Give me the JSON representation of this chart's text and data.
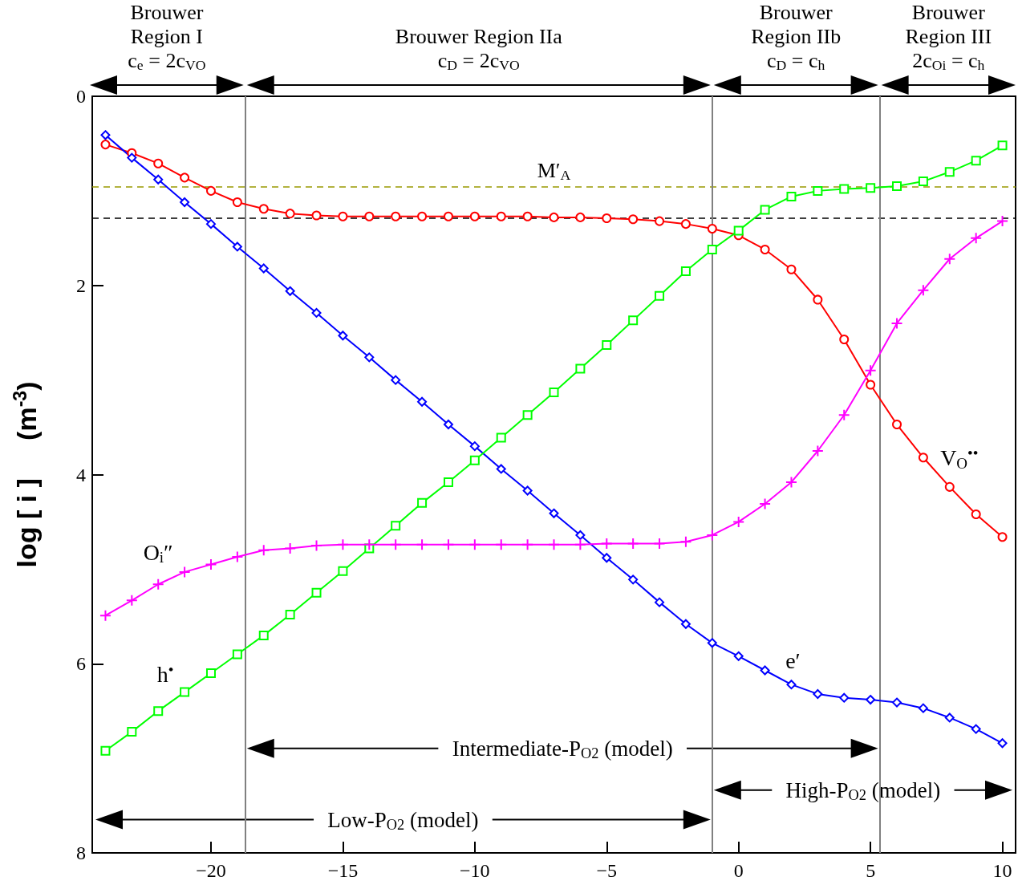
{
  "chart_data": {
    "type": "line",
    "ylabel": "log [ i ]     (m$^{-3}$)",
    "x": [
      -24,
      -23,
      -22,
      -21,
      -20,
      -19,
      -18,
      -17,
      -16,
      -15,
      -14,
      -13,
      -12,
      -11,
      -10,
      -9,
      -8,
      -7,
      -6,
      -5,
      -4,
      -3,
      -2,
      -1,
      0,
      1,
      2,
      3,
      4,
      5,
      6,
      7,
      8,
      9,
      10
    ],
    "series": [
      {
        "name": "V$_{O}$$^{••}$",
        "color": "#ff0000",
        "marker": "circle",
        "values": [
          0.51,
          0.6,
          0.71,
          0.86,
          1.0,
          1.12,
          1.19,
          1.24,
          1.26,
          1.27,
          1.27,
          1.27,
          1.27,
          1.27,
          1.27,
          1.27,
          1.27,
          1.28,
          1.28,
          1.29,
          1.3,
          1.32,
          1.35,
          1.4,
          1.47,
          1.62,
          1.83,
          2.15,
          2.57,
          3.05,
          3.47,
          3.82,
          4.13,
          4.42,
          4.66
        ]
      },
      {
        "name": "e′",
        "color": "#0000ff",
        "marker": "diamond",
        "values": [
          0.41,
          0.65,
          0.88,
          1.12,
          1.35,
          1.59,
          1.82,
          2.06,
          2.29,
          2.53,
          2.76,
          3.0,
          3.23,
          3.47,
          3.7,
          3.94,
          4.17,
          4.41,
          4.64,
          4.88,
          5.11,
          5.35,
          5.58,
          5.78,
          5.92,
          6.07,
          6.22,
          6.32,
          6.36,
          6.38,
          6.41,
          6.47,
          6.57,
          6.69,
          6.84
        ]
      },
      {
        "name": "h$^{•}$",
        "color": "#00ff00",
        "marker": "square",
        "values": [
          6.92,
          6.72,
          6.5,
          6.3,
          6.1,
          5.9,
          5.7,
          5.48,
          5.25,
          5.02,
          4.78,
          4.54,
          4.3,
          4.08,
          3.85,
          3.61,
          3.37,
          3.13,
          2.88,
          2.63,
          2.37,
          2.11,
          1.85,
          1.62,
          1.42,
          1.2,
          1.06,
          1.0,
          0.98,
          0.97,
          0.95,
          0.9,
          0.8,
          0.68,
          0.52
        ]
      },
      {
        "name": "O$_{i}$″",
        "color": "#ff00ff",
        "marker": "cross",
        "values": [
          5.49,
          5.33,
          5.16,
          5.03,
          4.95,
          4.87,
          4.8,
          4.78,
          4.75,
          4.74,
          4.74,
          4.74,
          4.74,
          4.74,
          4.74,
          4.74,
          4.74,
          4.74,
          4.74,
          4.73,
          4.73,
          4.73,
          4.71,
          4.64,
          4.5,
          4.31,
          4.08,
          3.75,
          3.37,
          2.9,
          2.4,
          2.05,
          1.72,
          1.5,
          1.32
        ]
      }
    ],
    "xlim": [
      -24.5,
      10.5
    ],
    "ylim": [
      8,
      0
    ],
    "xticks": [
      -20,
      -15,
      -10,
      -5,
      0,
      5,
      10
    ],
    "yticks": [
      0,
      2,
      4,
      6,
      8
    ],
    "grid": false,
    "legend": false,
    "ref_lines": [
      {
        "axis": "y",
        "value": 1.29,
        "color": "#000000",
        "line_style": "dashed"
      },
      {
        "axis": "y",
        "value": 0.96,
        "color": "#999900",
        "line_style": "dashed",
        "label": "M′$_{A}$"
      },
      {
        "axis": "x",
        "value": -18.7,
        "color": "#808080",
        "line_style": "solid"
      },
      {
        "axis": "x",
        "value": -1.0,
        "color": "#808080",
        "line_style": "solid"
      },
      {
        "axis": "x",
        "value": 5.35,
        "color": "#808080",
        "line_style": "solid"
      }
    ],
    "annotations": [
      "Brouwer\nRegion I\nc$_{e}$ = 2c$_{VO}$",
      "Brouwer Region IIa\nc$_{D}$ = 2c$_{VO}$",
      "Brouwer\nRegion IIb\nc$_{D}$ = c$_{h}$",
      "Brouwer\nRegion III\n2c$_{Oi}$ = c$_{h}$",
      "Intermediate-P$_{O2}$ (model)",
      "High-P$_{O2}$ (model)",
      "Low-P$_{O2}$ (model)"
    ]
  }
}
